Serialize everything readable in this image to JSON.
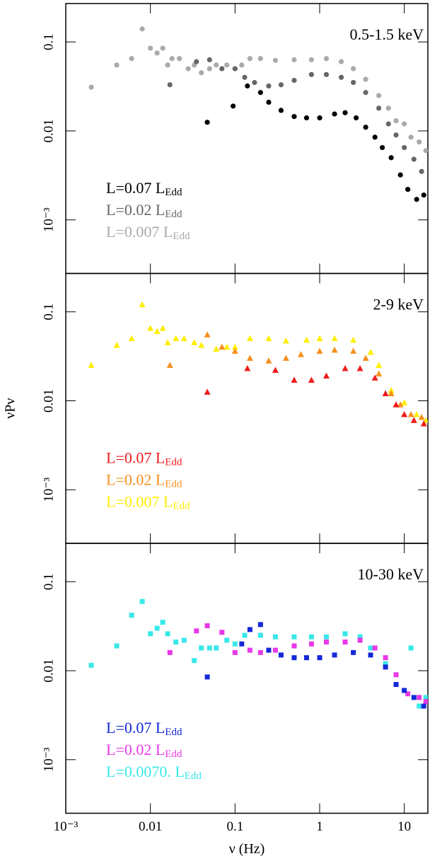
{
  "chart_data": [
    {
      "type": "scatter",
      "title": "0.5-1.5 keV",
      "marker": "circle",
      "log_x": true,
      "log_y": true,
      "xlim": [
        0.001,
        19
      ],
      "xticks": [
        {
          "value": 0.001,
          "label": "10⁻³"
        },
        0.01,
        0.1,
        1,
        10
      ],
      "ylim": [
        0.00025,
        0.27
      ],
      "yticks": [
        {
          "value": 0.001,
          "label": "10⁻³"
        },
        0.01,
        0.1
      ],
      "series": [
        {
          "name": "L=0.07 LEdd",
          "color": "#000000",
          "x": [
            0.047,
            0.095,
            0.14,
            0.2,
            0.25,
            0.35,
            0.5,
            0.7,
            1,
            1.5,
            2,
            2.7,
            3.5,
            4.5,
            5.5,
            7,
            9,
            11,
            14,
            17
          ],
          "values": [
            0.0125,
            0.019,
            0.032,
            0.027,
            0.021,
            0.017,
            0.0145,
            0.014,
            0.014,
            0.0155,
            0.016,
            0.014,
            0.011,
            0.0085,
            0.0065,
            0.005,
            0.0032,
            0.0022,
            0.0017,
            0.0019
          ]
        },
        {
          "name": "L=0.02 LEdd",
          "color": "#666666",
          "x": [
            0.017,
            0.035,
            0.05,
            0.07,
            0.1,
            0.13,
            0.17,
            0.25,
            0.35,
            0.5,
            0.8,
            1.2,
            1.8,
            2.5,
            3.5,
            5,
            6.5,
            8,
            10,
            13,
            16
          ],
          "values": [
            0.033,
            0.06,
            0.063,
            0.05,
            0.05,
            0.04,
            0.035,
            0.032,
            0.033,
            0.037,
            0.043,
            0.043,
            0.04,
            0.035,
            0.027,
            0.018,
            0.012,
            0.009,
            0.0065,
            0.0048,
            0.0035
          ]
        },
        {
          "name": "L=0.007 LEdd",
          "color": "#aaaaaa",
          "x": [
            0.002,
            0.004,
            0.006,
            0.008,
            0.01,
            0.012,
            0.014,
            0.016,
            0.018,
            0.022,
            0.028,
            0.033,
            0.04,
            0.05,
            0.06,
            0.08,
            0.1,
            0.12,
            0.15,
            0.2,
            0.3,
            0.5,
            0.8,
            1.2,
            1.8,
            2.5,
            3.5,
            5,
            6.5,
            8,
            10,
            12,
            15,
            18
          ],
          "values": [
            0.031,
            0.055,
            0.065,
            0.14,
            0.085,
            0.075,
            0.085,
            0.055,
            0.065,
            0.065,
            0.05,
            0.055,
            0.045,
            0.05,
            0.055,
            0.055,
            0.05,
            0.055,
            0.065,
            0.065,
            0.062,
            0.063,
            0.063,
            0.065,
            0.06,
            0.05,
            0.038,
            0.025,
            0.018,
            0.013,
            0.012,
            0.0085,
            0.0075,
            0.006
          ]
        }
      ]
    },
    {
      "type": "scatter",
      "title": "2-9 keV",
      "marker": "triangle",
      "log_x": true,
      "log_y": true,
      "ylabel": "νPν",
      "xlim": [
        0.001,
        19
      ],
      "xticks": [
        {
          "value": 0.001,
          "label": "10⁻³"
        },
        0.01,
        0.1,
        1,
        10
      ],
      "ylim": [
        0.00025,
        0.27
      ],
      "yticks": [
        {
          "value": 0.001,
          "label": "10⁻³"
        },
        0.01,
        0.1
      ],
      "series": [
        {
          "name": "L=0.07 LEdd",
          "color": "#ee1c1c",
          "x": [
            0.047,
            0.14,
            0.3,
            0.5,
            0.8,
            1.2,
            2,
            3,
            4.5,
            6,
            8,
            10,
            13,
            17
          ],
          "values": [
            0.0125,
            0.023,
            0.022,
            0.017,
            0.017,
            0.019,
            0.023,
            0.023,
            0.018,
            0.012,
            0.009,
            0.007,
            0.006,
            0.0055
          ]
        },
        {
          "name": "L=0.02 LEdd",
          "color": "#f7901e",
          "x": [
            0.017,
            0.047,
            0.07,
            0.1,
            0.15,
            0.25,
            0.4,
            0.6,
            1,
            1.5,
            2.5,
            3.5,
            5,
            7,
            9,
            12,
            16
          ],
          "values": [
            0.025,
            0.055,
            0.04,
            0.036,
            0.03,
            0.028,
            0.03,
            0.033,
            0.036,
            0.037,
            0.036,
            0.03,
            0.02,
            0.012,
            0.009,
            0.007,
            0.0065
          ]
        },
        {
          "name": "L=0.007 LEdd",
          "color": "#ffee00",
          "x": [
            0.002,
            0.004,
            0.006,
            0.008,
            0.01,
            0.012,
            0.014,
            0.016,
            0.02,
            0.025,
            0.033,
            0.04,
            0.06,
            0.08,
            0.1,
            0.15,
            0.25,
            0.4,
            0.7,
            1,
            1.5,
            2.5,
            4,
            5,
            7,
            10,
            14,
            18
          ],
          "values": [
            0.025,
            0.042,
            0.05,
            0.12,
            0.065,
            0.06,
            0.065,
            0.045,
            0.05,
            0.05,
            0.045,
            0.042,
            0.038,
            0.04,
            0.04,
            0.05,
            0.05,
            0.047,
            0.048,
            0.05,
            0.05,
            0.048,
            0.035,
            0.025,
            0.013,
            0.0095,
            0.007,
            0.006
          ]
        }
      ]
    },
    {
      "type": "scatter",
      "title": "10-30 keV",
      "marker": "square",
      "log_x": true,
      "log_y": true,
      "xlabel": "ν (Hz)",
      "xlim": [
        0.001,
        19
      ],
      "xticks": [
        {
          "value": 0.001,
          "label": "10⁻³"
        },
        0.01,
        0.1,
        1,
        10
      ],
      "ylim": [
        0.00025,
        0.27
      ],
      "yticks": [
        {
          "value": 0.001,
          "label": "10⁻³"
        },
        0.01,
        0.1
      ],
      "series": [
        {
          "name": "L=0.07 LEdd",
          "color": "#1428d8",
          "x": [
            0.047,
            0.12,
            0.15,
            0.2,
            0.25,
            0.35,
            0.5,
            0.7,
            1,
            1.5,
            2.5,
            4,
            6,
            8,
            10,
            13,
            17
          ],
          "values": [
            0.0085,
            0.02,
            0.029,
            0.033,
            0.017,
            0.015,
            0.014,
            0.014,
            0.014,
            0.015,
            0.016,
            0.015,
            0.011,
            0.007,
            0.006,
            0.005,
            0.004
          ]
        },
        {
          "name": "L=0.02 LEdd",
          "color": "#e838e8",
          "x": [
            0.017,
            0.035,
            0.047,
            0.07,
            0.1,
            0.15,
            0.2,
            0.3,
            0.5,
            0.8,
            1.2,
            2,
            3,
            4.5,
            6,
            8,
            11,
            15,
            18
          ],
          "values": [
            0.016,
            0.028,
            0.032,
            0.027,
            0.016,
            0.017,
            0.016,
            0.017,
            0.019,
            0.02,
            0.021,
            0.021,
            0.022,
            0.018,
            0.014,
            0.009,
            0.0055,
            0.005,
            0.0045
          ]
        },
        {
          "name": "L=0.0070. LEdd",
          "color": "#38e8e8",
          "x": [
            0.002,
            0.004,
            0.006,
            0.008,
            0.01,
            0.012,
            0.014,
            0.016,
            0.02,
            0.025,
            0.033,
            0.04,
            0.05,
            0.06,
            0.08,
            0.1,
            0.13,
            0.2,
            0.3,
            0.5,
            0.8,
            1.2,
            2,
            3,
            4,
            6,
            8,
            10,
            12,
            15,
            18
          ],
          "values": [
            0.0115,
            0.019,
            0.042,
            0.06,
            0.026,
            0.03,
            0.035,
            0.026,
            0.021,
            0.022,
            0.013,
            0.018,
            0.018,
            0.018,
            0.022,
            0.02,
            0.025,
            0.025,
            0.024,
            0.024,
            0.024,
            0.024,
            0.026,
            0.024,
            0.018,
            0.012,
            0.007,
            0.006,
            0.018,
            0.004,
            0.005
          ]
        }
      ]
    }
  ]
}
